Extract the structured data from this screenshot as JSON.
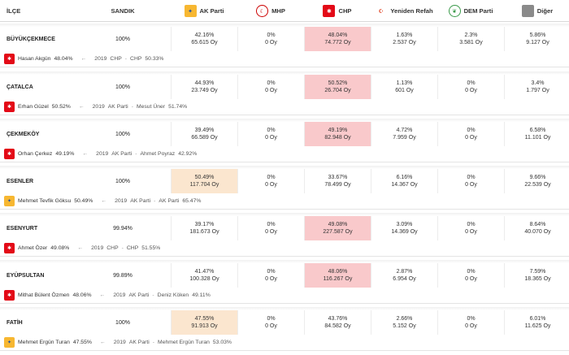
{
  "header": {
    "ilce": "İLÇE",
    "sandik": "SANDIK",
    "parties": [
      {
        "name": "AK Parti",
        "icon": "ak-parti-logo-icon",
        "glyph": "✦",
        "cls": "ak-logo"
      },
      {
        "name": "MHP",
        "icon": "mhp-logo-icon",
        "glyph": "☾",
        "cls": "mhp-logo"
      },
      {
        "name": "CHP",
        "icon": "chp-logo-icon",
        "glyph": "✱",
        "cls": "chp-logo"
      },
      {
        "name": "Yeniden Refah",
        "icon": "yeniden-refah-logo-icon",
        "glyph": "☪",
        "cls": "yrp-logo"
      },
      {
        "name": "DEM Parti",
        "icon": "dem-parti-logo-icon",
        "glyph": "❦",
        "cls": "dem-logo"
      },
      {
        "name": "Diğer",
        "icon": "diger-logo-icon",
        "glyph": "",
        "cls": "diger-logo"
      }
    ]
  },
  "colors": {
    "chp_win": "#f9c9cb",
    "ak_win": "#fbe6cf"
  },
  "rows": [
    {
      "name": "BÜYÜKÇEKMECE",
      "sandik": "100%",
      "winner": "chp",
      "results": [
        {
          "p": "42.16%",
          "o": "65.615 Oy"
        },
        {
          "p": "0%",
          "o": "0 Oy"
        },
        {
          "p": "48.04%",
          "o": "74.772 Oy"
        },
        {
          "p": "1.63%",
          "o": "2.537 Oy"
        },
        {
          "p": "2.3%",
          "o": "3.581 Oy"
        },
        {
          "p": "5.86%",
          "o": "9.127 Oy"
        }
      ],
      "candidate": "Hasan Akgün",
      "candidate_pct": "48.04%",
      "arrow": "←",
      "prev_year": "2019",
      "prev_party": "CHP",
      "dash": "-",
      "prev_winner": "CHP",
      "prev_pct": "50.33%"
    },
    {
      "name": "ÇATALCA",
      "sandik": "100%",
      "winner": "chp",
      "results": [
        {
          "p": "44.93%",
          "o": "23.749 Oy"
        },
        {
          "p": "0%",
          "o": "0 Oy"
        },
        {
          "p": "50.52%",
          "o": "26.704 Oy"
        },
        {
          "p": "1.13%",
          "o": "601 Oy"
        },
        {
          "p": "0%",
          "o": "0 Oy"
        },
        {
          "p": "3.4%",
          "o": "1.797 Oy"
        }
      ],
      "candidate": "Erhan Güzel",
      "candidate_pct": "50.52%",
      "arrow": "←",
      "prev_year": "2019",
      "prev_party": "AK Parti",
      "dash": "-",
      "prev_winner": "Mesut Üner",
      "prev_pct": "51.74%"
    },
    {
      "name": "ÇEKMEKÖY",
      "sandik": "100%",
      "winner": "chp",
      "results": [
        {
          "p": "39.49%",
          "o": "66.589 Oy"
        },
        {
          "p": "0%",
          "o": "0 Oy"
        },
        {
          "p": "49.19%",
          "o": "82.948 Oy"
        },
        {
          "p": "4.72%",
          "o": "7.959 Oy"
        },
        {
          "p": "0%",
          "o": "0 Oy"
        },
        {
          "p": "6.58%",
          "o": "11.101 Oy"
        }
      ],
      "candidate": "Orhan Çerkez",
      "candidate_pct": "49.19%",
      "arrow": "←",
      "prev_year": "2019",
      "prev_party": "AK Parti",
      "dash": "-",
      "prev_winner": "Ahmet Poyraz",
      "prev_pct": "42.92%"
    },
    {
      "name": "ESENLER",
      "sandik": "100%",
      "winner": "ak",
      "results": [
        {
          "p": "50.49%",
          "o": "117.704 Oy"
        },
        {
          "p": "0%",
          "o": "0 Oy"
        },
        {
          "p": "33.67%",
          "o": "78.499 Oy"
        },
        {
          "p": "6.16%",
          "o": "14.367 Oy"
        },
        {
          "p": "0%",
          "o": "0 Oy"
        },
        {
          "p": "9.66%",
          "o": "22.539 Oy"
        }
      ],
      "candidate": "Mehmet Tevfik Göksu",
      "candidate_pct": "50.49%",
      "arrow": "←",
      "prev_year": "2019",
      "prev_party": "AK Parti",
      "dash": "-",
      "prev_winner": "AK Parti",
      "prev_pct": "65.47%"
    },
    {
      "name": "ESENYURT",
      "sandik": "99.94%",
      "winner": "chp",
      "results": [
        {
          "p": "39.17%",
          "o": "181.673 Oy"
        },
        {
          "p": "0%",
          "o": "0 Oy"
        },
        {
          "p": "49.08%",
          "o": "227.587 Oy"
        },
        {
          "p": "3.09%",
          "o": "14.369 Oy"
        },
        {
          "p": "0%",
          "o": "0 Oy"
        },
        {
          "p": "8.64%",
          "o": "40.070 Oy"
        }
      ],
      "candidate": "Ahmet Özer",
      "candidate_pct": "49.08%",
      "arrow": "←",
      "prev_year": "2019",
      "prev_party": "CHP",
      "dash": "-",
      "prev_winner": "CHP",
      "prev_pct": "51.55%"
    },
    {
      "name": "EYÜPSULTAN",
      "sandik": "99.89%",
      "winner": "chp",
      "results": [
        {
          "p": "41.47%",
          "o": "100.328 Oy"
        },
        {
          "p": "0%",
          "o": "0 Oy"
        },
        {
          "p": "48.06%",
          "o": "116.267 Oy"
        },
        {
          "p": "2.87%",
          "o": "6.954 Oy"
        },
        {
          "p": "0%",
          "o": "0 Oy"
        },
        {
          "p": "7.59%",
          "o": "18.365 Oy"
        }
      ],
      "candidate": "Mithat Bülent Özmen",
      "candidate_pct": "48.06%",
      "arrow": "←",
      "prev_year": "2019",
      "prev_party": "AK Parti",
      "dash": "-",
      "prev_winner": "Deniz Köken",
      "prev_pct": "49.11%"
    },
    {
      "name": "FATİH",
      "sandik": "100%",
      "winner": "ak",
      "results": [
        {
          "p": "47.55%",
          "o": "91.913 Oy"
        },
        {
          "p": "0%",
          "o": "0 Oy"
        },
        {
          "p": "43.76%",
          "o": "84.582 Oy"
        },
        {
          "p": "2.66%",
          "o": "5.152 Oy"
        },
        {
          "p": "0%",
          "o": "0 Oy"
        },
        {
          "p": "6.01%",
          "o": "11.625 Oy"
        }
      ],
      "candidate": "Mehmet Ergün Turan",
      "candidate_pct": "47.55%",
      "arrow": "←",
      "prev_year": "2019",
      "prev_party": "AK Parti",
      "dash": "-",
      "prev_winner": "Mehmet Ergün Turan",
      "prev_pct": "53.03%"
    }
  ]
}
